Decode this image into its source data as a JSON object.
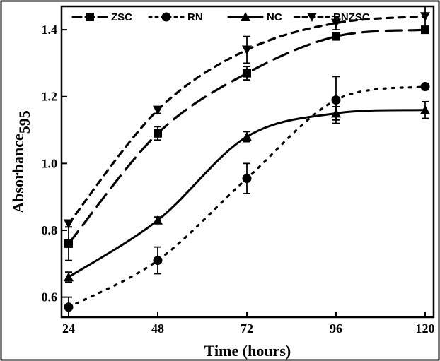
{
  "chart_data": {
    "type": "line",
    "xlabel": "Time (hours)",
    "ylabel_main": "Absorbance",
    "ylabel_sub": "595",
    "x": [
      24,
      48,
      72,
      96,
      120
    ],
    "xticks": [
      "24",
      "48",
      "72",
      "96",
      "120"
    ],
    "yticks": [
      "0.6",
      "0.8",
      "1.0",
      "1.2",
      "1.4"
    ],
    "xlim": [
      24,
      120
    ],
    "ylim": [
      0.54,
      1.47
    ],
    "grid": false,
    "legend_position": "top",
    "series": [
      {
        "name": "ZSC",
        "marker": "square",
        "dash": "long-dash",
        "values": [
          0.76,
          1.09,
          1.27,
          1.38,
          1.4
        ],
        "errors": [
          0.05,
          0.02,
          0.02,
          0.01,
          0.01
        ]
      },
      {
        "name": "RN",
        "marker": "circle",
        "dash": "dotted",
        "values": [
          0.57,
          0.71,
          0.955,
          1.19,
          1.23
        ],
        "errors": [
          0.03,
          0.04,
          0.045,
          0.07,
          0.01
        ]
      },
      {
        "name": "NC",
        "marker": "triangle-up",
        "dash": "solid",
        "values": [
          0.66,
          0.83,
          1.08,
          1.15,
          1.16
        ],
        "errors": [
          0.015,
          0.01,
          0.015,
          0.02,
          0.025
        ]
      },
      {
        "name": "RNZSC",
        "marker": "triangle-down",
        "dash": "short-dash",
        "values": [
          0.82,
          1.16,
          1.34,
          1.42,
          1.44
        ],
        "errors": [
          0.01,
          0.01,
          0.04,
          0.02,
          0.03
        ]
      }
    ]
  }
}
